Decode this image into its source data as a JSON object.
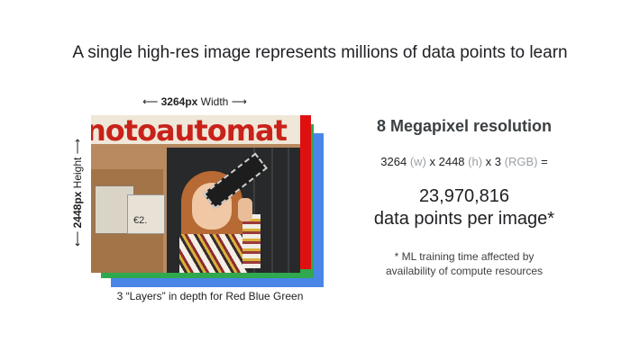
{
  "title": "A single high-res image represents millions of data points to learn",
  "width_label": {
    "arrow_left": "⟵",
    "value": "3264px",
    "word": "Width",
    "arrow_right": "⟶"
  },
  "height_label": {
    "arrow_left": "⟵",
    "value": "2448px",
    "word": "Height",
    "arrow_right": "⟶"
  },
  "photo": {
    "banner_text": "notoautomat",
    "sign_text": "€2."
  },
  "caption": "3 “Layers” in depth for Red Blue Green",
  "resolution_heading": "8 Megapixel resolution",
  "formula": {
    "w_value": "3264",
    "w_unit": "(w)",
    "times1": "x",
    "h_value": "2448",
    "h_unit": "(h)",
    "times2": "x",
    "c_value": "3",
    "c_unit": "(RGB)",
    "equals": "="
  },
  "result": {
    "number": "23,970,816",
    "text": "data points per image*"
  },
  "note": {
    "line1": "* ML training time affected by",
    "line2": "availability of compute resources"
  },
  "colors": {
    "red_layer": "#e01010",
    "green_layer": "#2fa84f",
    "blue_layer": "#4a86e8",
    "muted_text": "#9aa0a6"
  }
}
